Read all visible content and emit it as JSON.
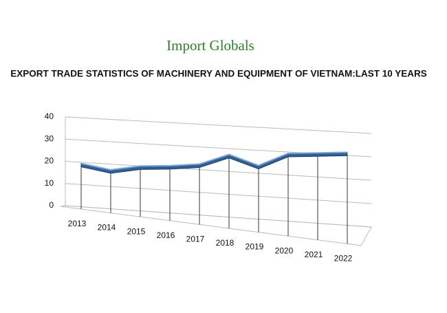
{
  "logo": "Import Globals",
  "chart_data": {
    "type": "line3d",
    "title": "EXPORT TRADE STATISTICS OF MACHINERY AND EQUIPMENT OF VIETNAM:LAST 10 YEARS",
    "categories": [
      "2013",
      "2014",
      "2015",
      "2016",
      "2017",
      "2018",
      "2019",
      "2020",
      "2021",
      "2022"
    ],
    "values": [
      17,
      15,
      17.5,
      18.5,
      20,
      25,
      21,
      27,
      28,
      29
    ],
    "color": "#2f5f94",
    "ylim": [
      0,
      40
    ],
    "yticks": [
      0,
      10,
      20,
      30,
      40
    ],
    "grid": true
  }
}
